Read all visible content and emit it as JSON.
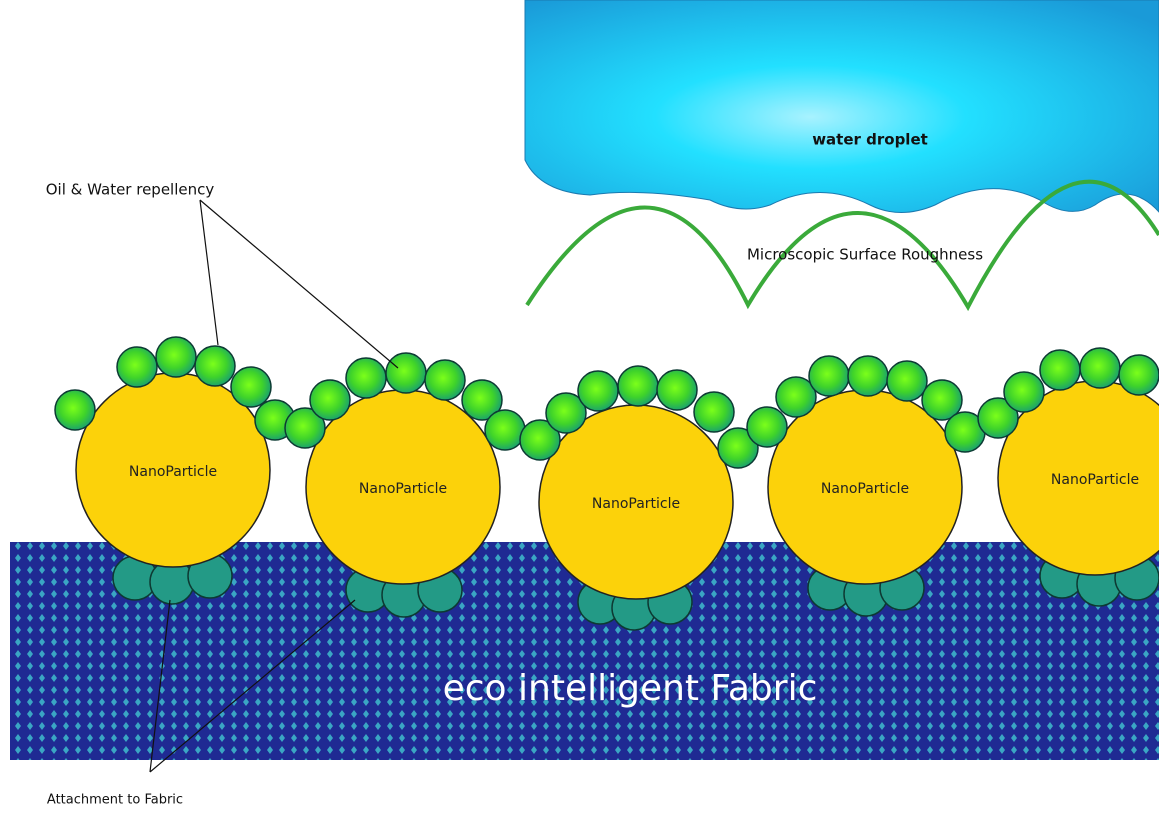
{
  "droplet": {
    "label": "water droplet"
  },
  "surface": {
    "label": "Microscopic  Surface Roughness"
  },
  "callouts": {
    "repellency": "Oil & Water repellency",
    "attachment": "Attachment to Fabric"
  },
  "fabric": {
    "label": "eco intelligent Fabric"
  },
  "nanoparticles": [
    {
      "label": "NanoParticle"
    },
    {
      "label": "NanoParticle"
    },
    {
      "label": "NanoParticle"
    },
    {
      "label": "NanoParticle"
    },
    {
      "label": "NanoParticle"
    }
  ]
}
